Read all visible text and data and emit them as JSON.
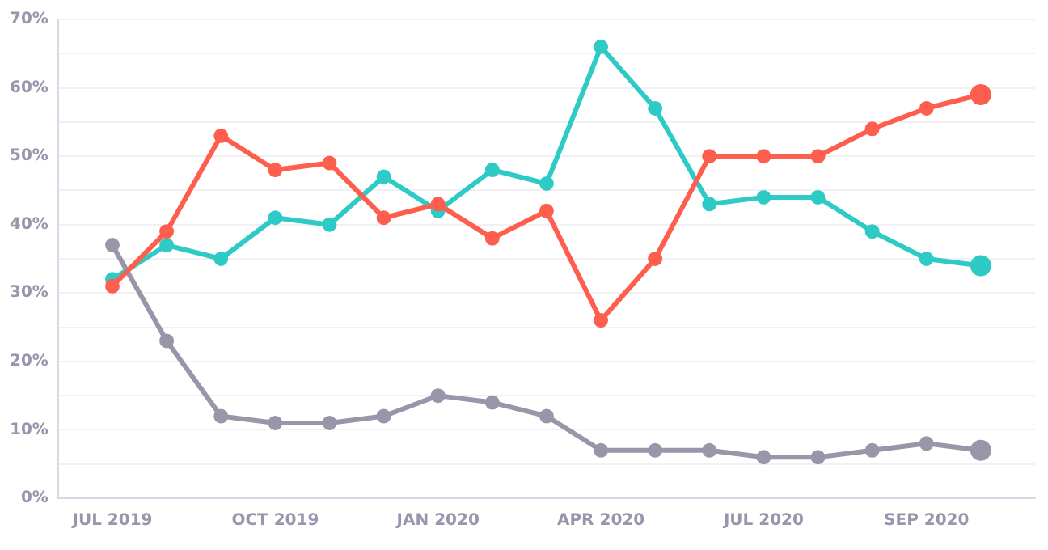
{
  "chart_data": {
    "type": "line",
    "categories": [
      "JUL 2019",
      null,
      null,
      "OCT 2019",
      null,
      null,
      "JAN 2020",
      null,
      null,
      "APR 2020",
      null,
      null,
      "JUL 2020",
      null,
      null,
      "SEP 2020",
      null
    ],
    "series": [
      {
        "color": "#fd5e4e",
        "values": [
          31,
          39,
          53,
          48,
          49,
          41,
          43,
          38,
          42,
          26,
          35,
          50,
          50,
          50,
          54,
          57,
          59
        ]
      },
      {
        "color": "#2ecbc6",
        "values": [
          32,
          37,
          35,
          41,
          40,
          47,
          42,
          48,
          46,
          66,
          57,
          43,
          44,
          44,
          39,
          35,
          34
        ]
      },
      {
        "color": "#9a95a8",
        "values": [
          37,
          23,
          12,
          11,
          11,
          12,
          15,
          14,
          12,
          7,
          7,
          7,
          6,
          6,
          7,
          8,
          7
        ]
      }
    ],
    "ylim": [
      0,
      70
    ],
    "yticks": [
      {
        "value": 0,
        "label": "0%"
      },
      {
        "value": 5,
        "label": null
      },
      {
        "value": 10,
        "label": "10%"
      },
      {
        "value": 15,
        "label": null
      },
      {
        "value": 20,
        "label": "20%"
      },
      {
        "value": 25,
        "label": null
      },
      {
        "value": 30,
        "label": "30%"
      },
      {
        "value": 35,
        "label": null
      },
      {
        "value": 40,
        "label": "40%"
      },
      {
        "value": 45,
        "label": null
      },
      {
        "value": 50,
        "label": "50%"
      },
      {
        "value": 55,
        "label": null
      },
      {
        "value": 60,
        "label": "60%"
      },
      {
        "value": 65,
        "label": null
      },
      {
        "value": 70,
        "label": "70%"
      }
    ],
    "grid": "y",
    "legend": false,
    "marker": "circle",
    "line_style": "solid"
  }
}
